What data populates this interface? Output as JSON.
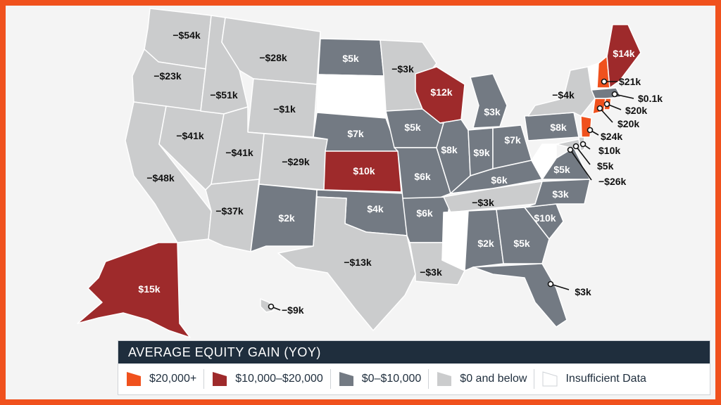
{
  "legend": {
    "title": "AVERAGE EQUITY GAIN (YOY)",
    "items": [
      {
        "label": "$20,000+",
        "color": "#f0511d"
      },
      {
        "label": "$10,000–$20,000",
        "color": "#9e2a2b"
      },
      {
        "label": "$0–$10,000",
        "color": "#737a83"
      },
      {
        "label": "$0 and below",
        "color": "#cbcccd"
      },
      {
        "label": "Insufficient Data",
        "color": "#ffffff"
      }
    ]
  },
  "states": {
    "WA": "−$54k",
    "OR": "−$23k",
    "CA": "−$48k",
    "NV": "−$41k",
    "ID": "−$51k",
    "MT": "−$28k",
    "WY": "−$1k",
    "UT": "−$41k",
    "AZ": "−$37k",
    "CO": "−$29k",
    "NM": "$2k",
    "ND": "$5k",
    "SD": "",
    "NE": "$7k",
    "KS": "$10k",
    "OK": "$4k",
    "TX": "−$13k",
    "MN": "−$3k",
    "IA": "$5k",
    "MO": "$6k",
    "AR": "$6k",
    "LA": "−$3k",
    "WI": "$12k",
    "IL": "$8k",
    "MS": "",
    "MI": "$3k",
    "IN": "$9k",
    "KY": "$6k",
    "TN": "−$3k",
    "AL": "$2k",
    "GA": "$5k",
    "FL": "$3k",
    "SC": "$10k",
    "NC": "$3k",
    "VA": "$5k",
    "WV": "",
    "OH": "$7k",
    "PA": "$8k",
    "NY": "−$4k",
    "VT": "",
    "NH": "$21k",
    "ME": "$14k",
    "MA": "$0.1k",
    "RI": "$20k",
    "CT": "$20k",
    "NJ": "$24k",
    "DE": "$10k",
    "MD": "$5k",
    "DC": "−$26k",
    "AK": "$15k",
    "HI": "−$9k"
  },
  "colors": {
    "high": "#f0511d",
    "mid_high": "#9e2a2b",
    "mid": "#737a83",
    "low": "#cbcccd",
    "none": "#ffffff"
  }
}
